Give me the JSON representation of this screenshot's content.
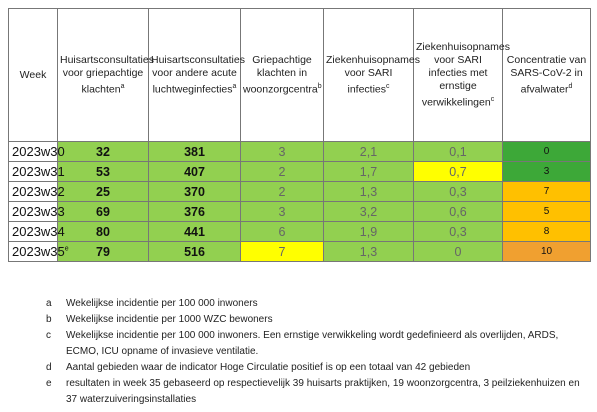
{
  "table": {
    "headers": [
      {
        "text": "Week"
      },
      {
        "text": "Huisartsconsultaties voor griepachtige klachten",
        "sup": "a"
      },
      {
        "text": "Huisartsconsultaties voor andere acute luchtweginfecties",
        "sup": "a"
      },
      {
        "text": "Griepachtige klachten in woonzorgcentra",
        "sup": "b"
      },
      {
        "text": "Ziekenhuisopnames voor SARI infecties",
        "sup": "c"
      },
      {
        "text": "Ziekenhuisopnames voor SARI infecties met ernstige verwikkelingen",
        "sup": "c"
      },
      {
        "text": "Concentratie van SARS-CoV-2 in afvalwater",
        "sup": "d"
      }
    ],
    "rows": [
      {
        "week": "2023w30",
        "cells": [
          "32",
          "381",
          "3",
          "2,1",
          "0,1",
          "0"
        ],
        "colors": [
          "#92d050",
          "#92d050",
          "#92d050",
          "#92d050",
          "#92d050",
          "#3da838"
        ]
      },
      {
        "week": "2023w31",
        "cells": [
          "53",
          "407",
          "2",
          "1,7",
          "0,7",
          "3"
        ],
        "colors": [
          "#92d050",
          "#92d050",
          "#92d050",
          "#92d050",
          "#ffff00",
          "#3da838"
        ]
      },
      {
        "week": "2023w32",
        "cells": [
          "25",
          "370",
          "2",
          "1,3",
          "0,3",
          "7"
        ],
        "colors": [
          "#92d050",
          "#92d050",
          "#92d050",
          "#92d050",
          "#92d050",
          "#ffc000"
        ]
      },
      {
        "week": "2023w33",
        "cells": [
          "69",
          "376",
          "3",
          "3,2",
          "0,6",
          "5"
        ],
        "colors": [
          "#92d050",
          "#92d050",
          "#92d050",
          "#92d050",
          "#92d050",
          "#ffc000"
        ]
      },
      {
        "week": "2023w34",
        "cells": [
          "80",
          "441",
          "6",
          "1,9",
          "0,3",
          "8"
        ],
        "colors": [
          "#92d050",
          "#92d050",
          "#92d050",
          "#92d050",
          "#92d050",
          "#ffc000"
        ]
      },
      {
        "week": "2023w35",
        "week_note": "e",
        "cells": [
          "79",
          "516",
          "7",
          "1,3",
          "0",
          "10"
        ],
        "colors": [
          "#92d050",
          "#92d050",
          "#ffff00",
          "#92d050",
          "#92d050",
          "#f0a030"
        ]
      }
    ]
  },
  "footnotes": [
    {
      "letter": "a",
      "text": "Wekelijkse incidentie per 100 000 inwoners"
    },
    {
      "letter": "b",
      "text": "Wekelijkse incidentie per 1000 WZC bewoners"
    },
    {
      "letter": "c",
      "text": "Wekelijkse incidentie per 100 000 inwoners. Een ernstige verwikkeling wordt gedefinieerd als overlijden, ARDS, ECMO, ICU opname of invasieve ventilatie."
    },
    {
      "letter": "d",
      "text": "Aantal gebieden waar de indicator Hoge Circulatie positief is op een totaal van 42 gebieden"
    },
    {
      "letter": "e",
      "text": "resultaten in week 35 gebaseerd op respectievelijk 39 huisarts praktijken, 19 woonzorgcentra, 3 peilziekenhuizen en 37 waterzuiveringsinstallaties"
    }
  ]
}
